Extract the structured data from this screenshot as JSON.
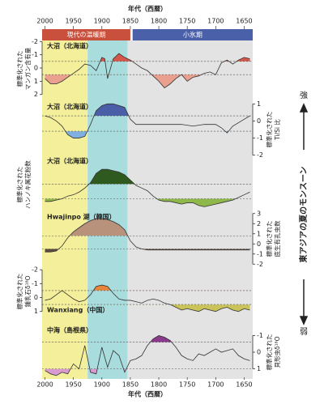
{
  "chart_data": {
    "type": "multi-panel",
    "x_title": "年代（西暦）",
    "xlim": [
      2005,
      1635
    ],
    "xticks": [
      2000,
      1950,
      1900,
      1850,
      1800,
      1750,
      1700,
      1650
    ],
    "periods": [
      {
        "name": "現代の温暖期",
        "color": "#c9503c",
        "from": 2005,
        "to": 1850
      },
      {
        "name": "小氷期",
        "color": "#4a60a8",
        "from": 1846,
        "to": 1635
      }
    ],
    "shading": [
      {
        "from": 2005,
        "to": 1925,
        "color": "#f3ef9a"
      },
      {
        "from": 1925,
        "to": 1855,
        "color": "#a9dcdc"
      },
      {
        "from": 1855,
        "to": 1635,
        "color": "#e3e3e3"
      }
    ],
    "monsoon": {
      "label": "東アジアの夏のモンスーン",
      "strong": "強",
      "weak": "弱"
    },
    "panels": [
      {
        "type": "line",
        "label": "大沼（北海道）",
        "ylabel": [
          "標準化された",
          "マンガン含有量"
        ],
        "axis": "left",
        "ylim": [
          2.2,
          -2.2
        ],
        "yticks": [
          -2,
          -1,
          0,
          1,
          2
        ],
        "dashed": [
          -0.5,
          0.5
        ],
        "fill_colors": [
          "#d4574a",
          "#e9a08e"
        ],
        "x": [
          2000,
          1990,
          1980,
          1970,
          1960,
          1950,
          1940,
          1930,
          1920,
          1910,
          1900,
          1895,
          1890,
          1880,
          1870,
          1860,
          1850,
          1840,
          1830,
          1820,
          1810,
          1800,
          1790,
          1780,
          1770,
          1760,
          1750,
          1740,
          1730,
          1720,
          1710,
          1700,
          1690,
          1680,
          1670,
          1660,
          1650,
          1640
        ],
        "values": [
          0.8,
          1.2,
          1.2,
          1.0,
          0.7,
          0.4,
          0.1,
          -0.3,
          -0.2,
          0.2,
          -0.8,
          -0.7,
          0.8,
          -0.7,
          -1.1,
          -0.8,
          -0.6,
          -0.3,
          0.0,
          0.2,
          0.6,
          1.0,
          1.5,
          1.2,
          0.8,
          0.5,
          1.0,
          0.7,
          0.6,
          0.4,
          0.3,
          0.5,
          -0.4,
          -0.6,
          -0.3,
          -0.6,
          -0.8,
          -0.7
        ]
      },
      {
        "type": "line",
        "label": "大沼（北海道）",
        "ylabel": [
          "標準化された",
          "Ti/Si 比"
        ],
        "axis": "right",
        "ylim": [
          -2.3,
          1.3
        ],
        "yticks": [
          1,
          0,
          -1,
          -2
        ],
        "dashed": [
          0.3,
          -0.6
        ],
        "fill_colors": [
          "#4a5fa8",
          "#7fb0df"
        ],
        "x": [
          2000,
          1990,
          1980,
          1970,
          1960,
          1950,
          1940,
          1930,
          1920,
          1910,
          1900,
          1890,
          1880,
          1870,
          1860,
          1850,
          1840,
          1830,
          1820,
          1800,
          1780,
          1760,
          1740,
          1720,
          1700,
          1690,
          1680,
          1670,
          1660,
          1650,
          1640
        ],
        "values": [
          0.3,
          0.2,
          0.0,
          -0.3,
          -0.8,
          -1.0,
          -1.0,
          -0.9,
          -0.2,
          0.6,
          0.9,
          1.0,
          1.0,
          0.9,
          0.8,
          0.1,
          -0.2,
          -0.2,
          -0.2,
          -0.2,
          -0.2,
          -0.2,
          -0.3,
          -0.2,
          -0.2,
          -0.4,
          -0.7,
          -0.3,
          -0.1,
          0.1,
          0.3
        ]
      },
      {
        "type": "line",
        "label": "大沼（北海道）",
        "ylabel": [
          "標準化された",
          "ハンノキ属花粉数"
        ],
        "axis": "none",
        "ylim": [
          -1.5,
          2.5
        ],
        "dashed": [
          0.6,
          -0.5
        ],
        "fill_colors": [
          "#2f5a1f",
          "#8fb84a"
        ],
        "x": [
          2000,
          1990,
          1980,
          1970,
          1960,
          1950,
          1940,
          1930,
          1920,
          1910,
          1900,
          1890,
          1880,
          1870,
          1860,
          1850,
          1840,
          1830,
          1820,
          1810,
          1800,
          1790,
          1780,
          1770,
          1760,
          1750,
          1740,
          1730,
          1720,
          1710,
          1700,
          1690,
          1680,
          1670,
          1660,
          1650,
          1640
        ],
        "values": [
          -0.7,
          -0.7,
          -0.6,
          -0.5,
          -0.3,
          -0.2,
          0.0,
          0.3,
          0.7,
          1.4,
          1.7,
          1.7,
          1.6,
          1.5,
          1.3,
          0.9,
          0.5,
          0.3,
          0.1,
          -0.3,
          -0.6,
          -0.7,
          -0.7,
          -0.8,
          -0.9,
          -0.8,
          -0.8,
          -1.0,
          -1.1,
          -1.0,
          -0.9,
          -0.8,
          -0.7,
          -0.6,
          -0.4,
          -0.2,
          0.0
        ]
      },
      {
        "type": "line",
        "label": "Hwajinpo 湖（韓国）",
        "ylabel": [
          "標準化された",
          "底生有孔虫数"
        ],
        "axis": "right",
        "ylim": [
          -2.3,
          3.3
        ],
        "yticks": [
          3,
          2,
          1,
          0,
          -1,
          -2
        ],
        "dashed": [
          0.8,
          -0.5
        ],
        "fill_colors": [
          "#b8927a",
          "#5c4b3c"
        ],
        "x": [
          2000,
          1990,
          1980,
          1970,
          1960,
          1950,
          1940,
          1930,
          1920,
          1910,
          1900,
          1890,
          1880,
          1870,
          1860,
          1850,
          1840,
          1830,
          1820,
          1800,
          1780,
          1760,
          1740,
          1720,
          1700,
          1680,
          1660,
          1640
        ],
        "values": [
          -0.8,
          -0.8,
          -0.7,
          -0.2,
          0.6,
          1.2,
          1.6,
          2.0,
          2.3,
          2.5,
          2.5,
          2.4,
          2.2,
          1.9,
          1.4,
          0.3,
          -0.3,
          -0.5,
          -0.6,
          -0.6,
          -0.6,
          -0.6,
          -0.6,
          -0.6,
          -0.6,
          -0.6,
          -0.6,
          -0.6
        ]
      },
      {
        "type": "line",
        "label": "Wanxiang（中国）",
        "ylabel": [
          "標準化された",
          "鍾乳石δ¹⁸O"
        ],
        "axis": "left",
        "ylim": [
          1.6,
          -2.3
        ],
        "yticks": [
          -2,
          -1,
          0,
          1
        ],
        "dashed": [
          -0.5,
          0.5
        ],
        "fill_colors": [
          "#e8853a",
          "#c9c35a"
        ],
        "x": [
          2000,
          1990,
          1980,
          1970,
          1960,
          1950,
          1940,
          1930,
          1920,
          1910,
          1900,
          1890,
          1880,
          1870,
          1860,
          1850,
          1840,
          1830,
          1820,
          1810,
          1800,
          1790,
          1780,
          1770,
          1760,
          1750,
          1740,
          1730,
          1720,
          1710,
          1700,
          1690,
          1680,
          1670,
          1660,
          1650,
          1640
        ],
        "values": [
          0.2,
          0.1,
          -0.2,
          -0.5,
          -0.2,
          0.1,
          0.3,
          0.2,
          -0.2,
          -0.8,
          -0.9,
          -0.8,
          -0.3,
          0.1,
          0.2,
          0.2,
          0.3,
          0.4,
          0.2,
          0.1,
          0.2,
          0.4,
          0.5,
          0.7,
          0.9,
          0.8,
          0.9,
          1.0,
          0.8,
          0.9,
          1.0,
          0.8,
          0.7,
          0.9,
          1.0,
          0.8,
          0.9
        ]
      },
      {
        "type": "line",
        "label": "中海（島根県）",
        "ylabel": [
          "標準化された",
          "貝形虫δ¹⁸O"
        ],
        "axis": "right",
        "ylim": [
          1.6,
          -1.7
        ],
        "yticks": [
          -1,
          0,
          1
        ],
        "dashed": [
          -0.6,
          1.0
        ],
        "fill_colors": [
          "#8a3a8a",
          "#d99ad0"
        ],
        "x": [
          2000,
          1990,
          1980,
          1970,
          1960,
          1950,
          1940,
          1930,
          1920,
          1910,
          1900,
          1890,
          1880,
          1870,
          1860,
          1850,
          1840,
          1830,
          1820,
          1810,
          1800,
          1790,
          1780,
          1770,
          1760,
          1750,
          1740,
          1730,
          1720,
          1710,
          1700,
          1690,
          1680,
          1670,
          1660,
          1650,
          1640
        ],
        "values": [
          1.1,
          1.3,
          1.4,
          1.2,
          1.3,
          0.7,
          1.0,
          -0.4,
          1.2,
          1.3,
          -0.3,
          0.9,
          -0.1,
          0.2,
          1.2,
          0.5,
          0.4,
          0.2,
          -0.4,
          -0.8,
          -1.0,
          -0.9,
          -0.7,
          -0.3,
          0.2,
          0.4,
          0.5,
          0.1,
          0.2,
          0.0,
          -0.2,
          0.0,
          -0.1,
          -0.2,
          0.2,
          0.4,
          0.5
        ]
      }
    ]
  }
}
